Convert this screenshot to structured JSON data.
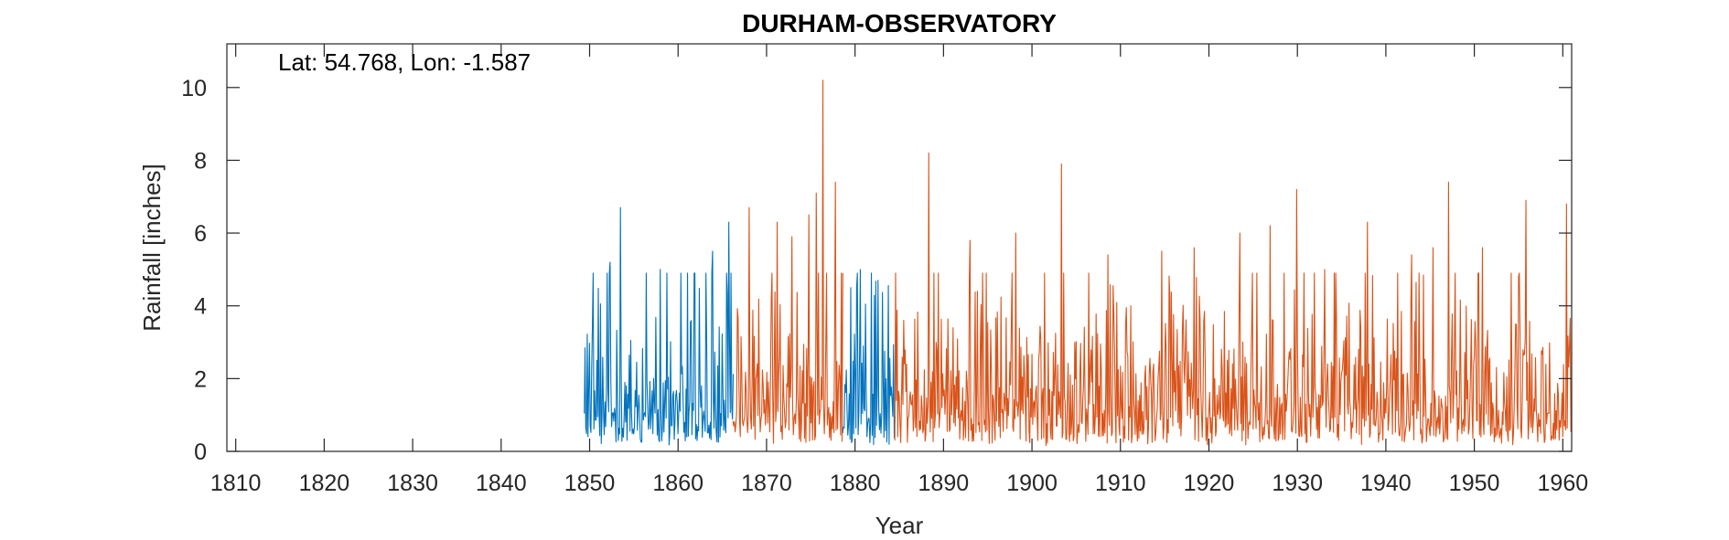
{
  "chart_data": {
    "type": "line",
    "title": "DURHAM-OBSERVATORY",
    "annotation": "Lat: 54.768, Lon: -1.587",
    "xlabel": "Year",
    "ylabel": "Rainfall [inches]",
    "xlim": [
      1809,
      1961
    ],
    "ylim": [
      0,
      11.2
    ],
    "xticks": [
      "1810",
      "1820",
      "1830",
      "1840",
      "1850",
      "1860",
      "1870",
      "1880",
      "1890",
      "1900",
      "1910",
      "1920",
      "1930",
      "1940",
      "1950",
      "1960"
    ],
    "yticks": [
      "0",
      "2",
      "4",
      "6",
      "8",
      "10"
    ],
    "grid": false,
    "series": [
      {
        "color": "#0072BD",
        "segments": [
          {
            "start": 1849.4,
            "end": 1866.2,
            "peaks": [
              [
                1853.5,
                6.7
              ],
              [
                1865.7,
                6.3
              ],
              [
                1863.9,
                5.5
              ],
              [
                1852.3,
                5.2
              ],
              [
                1858.0,
                5.0
              ],
              [
                1856.4,
                4.9
              ]
            ]
          },
          {
            "start": 1878.6,
            "end": 1884.5,
            "peaks": [
              [
                1880.6,
                5.0
              ],
              [
                1882.6,
                4.7
              ],
              [
                1879.5,
                4.5
              ]
            ]
          }
        ]
      },
      {
        "color": "#D95319",
        "segments": [
          {
            "start": 1866.2,
            "end": 1878.6,
            "peaks": [
              [
                1876.4,
                10.2
              ],
              [
                1877.8,
                7.4
              ],
              [
                1875.6,
                7.1
              ],
              [
                1874.8,
                6.5
              ],
              [
                1868.0,
                6.7
              ],
              [
                1871.2,
                6.3
              ],
              [
                1872.9,
                5.9
              ]
            ]
          },
          {
            "start": 1884.5,
            "end": 1960.9,
            "peaks": [
              [
                1888.3,
                8.2
              ],
              [
                1903.3,
                7.9
              ],
              [
                1929.9,
                7.2
              ],
              [
                1947.1,
                7.4
              ],
              [
                1955.8,
                6.9
              ],
              [
                1960.4,
                6.8
              ],
              [
                1937.9,
                6.3
              ],
              [
                1923.5,
                6.0
              ],
              [
                1926.9,
                6.2
              ],
              [
                1898.2,
                6.0
              ],
              [
                1893.0,
                5.8
              ],
              [
                1950.9,
                5.6
              ],
              [
                1908.6,
                5.4
              ],
              [
                1914.7,
                5.5
              ],
              [
                1918.3,
                5.6
              ],
              [
                1942.9,
                5.4
              ],
              [
                1933.1,
                5.0
              ],
              [
                1945.3,
                5.6
              ]
            ]
          }
        ]
      }
    ]
  }
}
